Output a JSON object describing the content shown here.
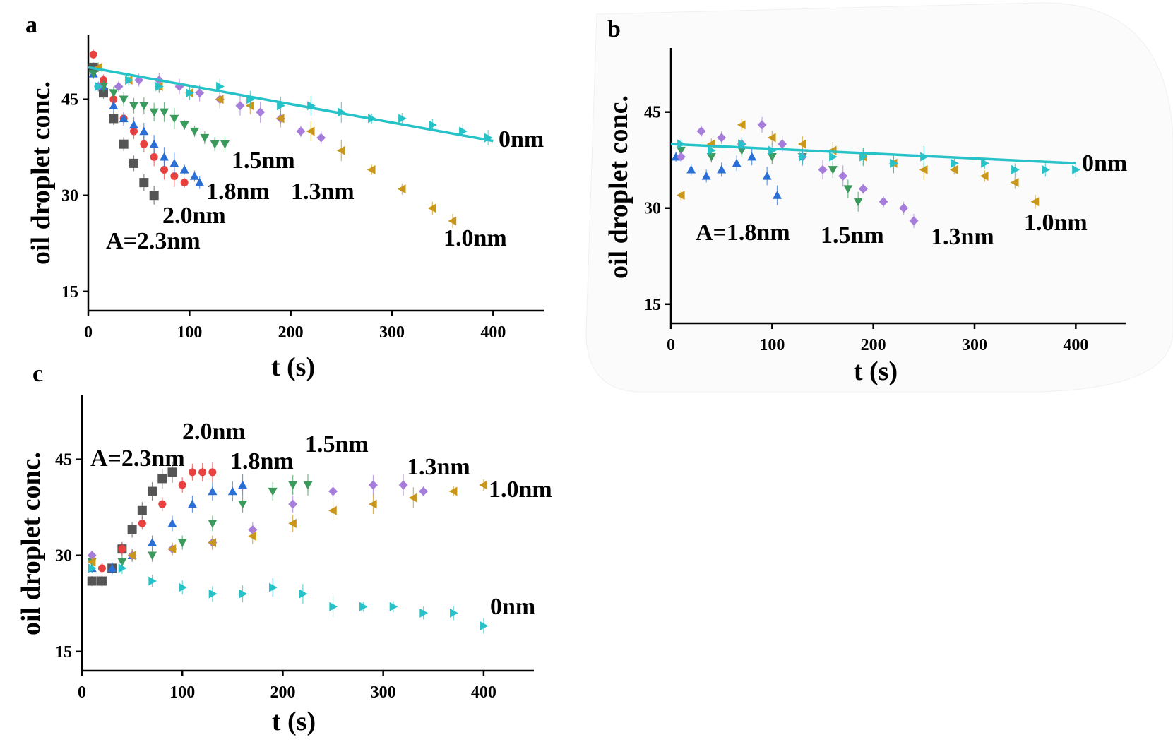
{
  "figure": {
    "colors": {
      "A=2.3nm": "#555555",
      "2.0nm": "#e8413f",
      "1.8nm": "#2a6fd6",
      "1.5nm": "#3a9a5b",
      "1.3nm": "#a77ddc",
      "1.0nm": "#c9981a",
      "0nm": "#26c2c8"
    },
    "markers": {
      "A=2.3nm": "square",
      "2.0nm": "circle",
      "1.8nm": "triangle-up",
      "1.5nm": "triangle-down",
      "1.3nm": "diamond",
      "1.0nm": "triangle-left",
      "0nm": "triangle-right"
    }
  },
  "chart_data": [
    {
      "panel": "a",
      "type": "scatter",
      "title": "",
      "xlabel": "t (s)",
      "ylabel": "oil droplet conc.",
      "xlim": [
        0,
        450
      ],
      "ylim": [
        12,
        55
      ],
      "xticks": [
        0,
        100,
        200,
        300,
        400
      ],
      "yticks": [
        15,
        30,
        45
      ],
      "fit_line": {
        "series": "0nm",
        "x": [
          0,
          400
        ],
        "y": [
          50,
          38.5
        ]
      },
      "series": [
        {
          "name": "A=2.3nm",
          "label": "A=2.3nm",
          "x": [
            5,
            15,
            25,
            35,
            45,
            55,
            65
          ],
          "y": [
            50,
            46,
            42,
            38,
            35,
            32,
            30
          ]
        },
        {
          "name": "2.0nm",
          "label": "2.0nm",
          "x": [
            5,
            15,
            25,
            35,
            45,
            55,
            65,
            75,
            85,
            95
          ],
          "y": [
            52,
            48,
            45,
            42,
            40,
            38,
            36,
            34,
            33,
            32
          ]
        },
        {
          "name": "1.8nm",
          "label": "1.8nm",
          "x": [
            5,
            15,
            25,
            35,
            45,
            55,
            65,
            75,
            85,
            95,
            105,
            110
          ],
          "y": [
            49,
            47,
            44,
            42,
            41,
            40,
            38,
            36,
            35,
            34,
            33,
            32
          ]
        },
        {
          "name": "1.5nm",
          "label": "1.5nm",
          "x": [
            5,
            15,
            25,
            35,
            45,
            55,
            65,
            75,
            85,
            95,
            105,
            115,
            125,
            135
          ],
          "y": [
            49,
            47,
            46,
            45,
            44,
            44,
            43,
            43,
            42,
            41,
            40,
            39,
            38,
            38
          ]
        },
        {
          "name": "1.3nm",
          "label": "1.3nm",
          "x": [
            10,
            30,
            50,
            70,
            90,
            110,
            130,
            150,
            170,
            190,
            210,
            230
          ],
          "y": [
            47,
            47,
            48,
            48,
            47,
            46,
            45,
            44,
            43,
            42,
            40,
            39
          ]
        },
        {
          "name": "1.0nm",
          "label": "1.0nm",
          "x": [
            10,
            40,
            70,
            100,
            130,
            160,
            190,
            220,
            250,
            280,
            310,
            340,
            360
          ],
          "y": [
            50,
            48,
            47,
            46,
            45,
            44,
            42,
            40,
            37,
            34,
            31,
            28,
            26
          ]
        },
        {
          "name": "0nm",
          "label": "0nm",
          "x": [
            10,
            40,
            70,
            100,
            130,
            160,
            190,
            220,
            250,
            280,
            310,
            340,
            370,
            395
          ],
          "y": [
            47,
            48,
            47,
            46,
            47,
            45,
            44,
            44,
            43,
            42,
            42,
            41,
            40,
            39
          ]
        }
      ]
    },
    {
      "panel": "b",
      "type": "scatter",
      "title": "",
      "xlabel": "t (s)",
      "ylabel": "oil droplet conc.",
      "xlim": [
        0,
        450
      ],
      "ylim": [
        12,
        55
      ],
      "xticks": [
        0,
        100,
        200,
        300,
        400
      ],
      "yticks": [
        15,
        30,
        45
      ],
      "fit_line": {
        "series": "0nm",
        "x": [
          0,
          400
        ],
        "y": [
          40,
          37
        ]
      },
      "series": [
        {
          "name": "1.8nm",
          "label": "A=1.8nm",
          "x": [
            5,
            20,
            35,
            50,
            65,
            80,
            95,
            105
          ],
          "y": [
            38,
            36,
            35,
            36,
            37,
            38,
            35,
            32
          ]
        },
        {
          "name": "1.5nm",
          "label": "1.5nm",
          "x": [
            10,
            40,
            70,
            100,
            130,
            160,
            175,
            185
          ],
          "y": [
            39,
            38,
            39,
            38,
            38,
            36,
            33,
            31
          ]
        },
        {
          "name": "1.3nm",
          "label": "1.3nm",
          "x": [
            10,
            30,
            50,
            70,
            90,
            110,
            130,
            150,
            170,
            190,
            210,
            230,
            240
          ],
          "y": [
            38,
            42,
            41,
            40,
            43,
            40,
            38,
            36,
            35,
            33,
            31,
            30,
            28
          ]
        },
        {
          "name": "1.0nm",
          "label": "1.0nm",
          "x": [
            10,
            40,
            70,
            100,
            130,
            160,
            190,
            220,
            250,
            280,
            310,
            340,
            360
          ],
          "y": [
            32,
            40,
            43,
            41,
            40,
            39,
            38,
            37,
            36,
            36,
            35,
            34,
            31
          ]
        },
        {
          "name": "0nm",
          "label": "0nm",
          "x": [
            10,
            40,
            70,
            100,
            130,
            160,
            190,
            220,
            250,
            280,
            310,
            340,
            370,
            400
          ],
          "y": [
            40,
            39,
            40,
            39,
            38,
            38,
            38,
            37,
            38,
            37,
            37,
            36,
            36,
            36
          ]
        }
      ]
    },
    {
      "panel": "c",
      "type": "scatter",
      "title": "",
      "xlabel": "t (s)",
      "ylabel": "oil droplet conc.",
      "xlim": [
        0,
        450
      ],
      "ylim": [
        12,
        55
      ],
      "xticks": [
        0,
        100,
        200,
        300,
        400
      ],
      "yticks": [
        15,
        30,
        45
      ],
      "series": [
        {
          "name": "A=2.3nm",
          "label": "A=2.3nm",
          "x": [
            10,
            20,
            30,
            40,
            50,
            60,
            70,
            80,
            90
          ],
          "y": [
            26,
            26,
            28,
            31,
            34,
            37,
            40,
            42,
            43
          ]
        },
        {
          "name": "2.0nm",
          "label": "2.0nm",
          "x": [
            20,
            40,
            60,
            80,
            100,
            110,
            120,
            130
          ],
          "y": [
            28,
            31,
            35,
            38,
            41,
            43,
            43,
            43
          ]
        },
        {
          "name": "1.8nm",
          "label": "1.8nm",
          "x": [
            10,
            30,
            50,
            70,
            90,
            110,
            130,
            150,
            160
          ],
          "y": [
            28,
            28,
            30,
            32,
            35,
            38,
            40,
            40,
            41
          ]
        },
        {
          "name": "1.5nm",
          "label": "1.5nm",
          "x": [
            10,
            40,
            70,
            100,
            130,
            160,
            190,
            210,
            225
          ],
          "y": [
            29,
            29,
            30,
            32,
            35,
            38,
            40,
            41,
            41
          ]
        },
        {
          "name": "1.3nm",
          "label": "1.3nm",
          "x": [
            10,
            50,
            90,
            130,
            170,
            210,
            250,
            290,
            320,
            340
          ],
          "y": [
            30,
            30,
            31,
            32,
            34,
            38,
            40,
            41,
            41,
            40
          ]
        },
        {
          "name": "1.0nm",
          "label": "1.0nm",
          "x": [
            10,
            50,
            90,
            130,
            170,
            210,
            250,
            290,
            330,
            370,
            400
          ],
          "y": [
            29,
            30,
            31,
            32,
            33,
            35,
            37,
            38,
            39,
            40,
            41
          ]
        },
        {
          "name": "0nm",
          "label": "0nm",
          "x": [
            10,
            40,
            70,
            100,
            130,
            160,
            190,
            220,
            250,
            280,
            310,
            340,
            370,
            400
          ],
          "y": [
            28,
            28,
            26,
            25,
            24,
            24,
            25,
            24,
            22,
            22,
            22,
            21,
            21,
            19
          ]
        }
      ]
    }
  ],
  "layout_labels": {
    "panels": [
      "a",
      "b",
      "c"
    ]
  }
}
